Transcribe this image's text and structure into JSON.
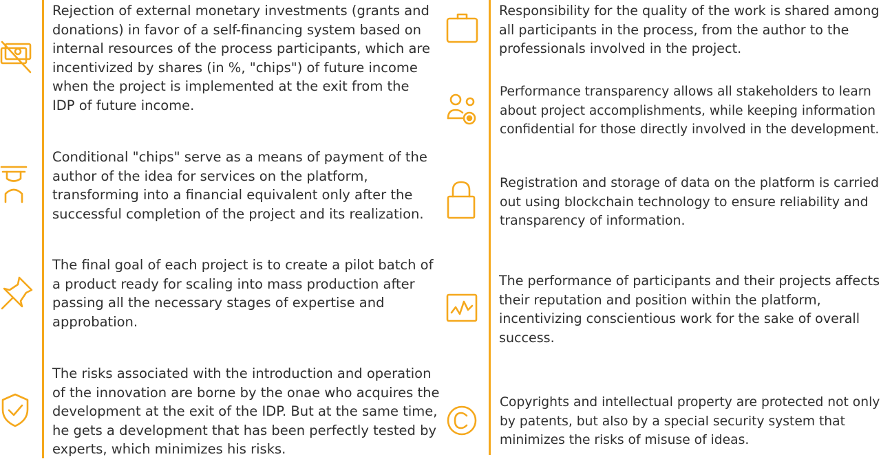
{
  "accent_color": "#f5a81c",
  "text_color": "#2f2f2f",
  "left_column": [
    {
      "icon": "no-money-icon",
      "lines": [
        "Rejection of external monetary investments (grants and",
        "donations) in favor of a self-financing system based on",
        "internal resources of the process participants, which are",
        "incentivized by shares (in %, \"chips\") of future income",
        "when the project is implemented at the exit from the",
        "IDP of future income."
      ]
    },
    {
      "icon": "exchange-icon",
      "lines": [
        "Conditional \"chips\" serve as a means of payment of the",
        "author of the idea for services on the  platform,",
        "transforming into a financial equivalent only after the",
        "successful completion of the project and its realization."
      ]
    },
    {
      "icon": "pin-icon",
      "lines": [
        "The final goal of each project is to create a pilot batch of",
        "a product ready for scaling into  mass production after",
        "passing all the necessary stages of expertise and",
        "approbation."
      ]
    },
    {
      "icon": "shield-check-icon",
      "lines": [
        "The risks associated with the introduction and operation",
        "of the innovation are borne by the onae who acquires the",
        "development at the exit of the IDP. But at the same time,",
        "he gets a development that has been perfectly tested by",
        "experts, which minimizes his risks."
      ]
    }
  ],
  "right_column": [
    {
      "icon": "briefcase-icon",
      "lines": [
        "Responsibility for the quality of the work is shared among",
        "all participants in the process,  from the author to the",
        "professionals involved in the project."
      ]
    },
    {
      "icon": "people-eye-icon",
      "lines": [
        "Performance transparency allows all stakeholders to learn",
        "about project accomplishments, while keeping information",
        "confidential for those directly involved in the development."
      ]
    },
    {
      "icon": "lock-icon",
      "lines": [
        "Registration and storage of data on the platform is carried",
        "out using blockchain technology  to ensure reliability and",
        "transparency of information."
      ]
    },
    {
      "icon": "chart-icon",
      "lines": [
        "The performance of participants and their projects affects",
        "their reputation and position within the platform,",
        "incentivizing conscientious work for the sake of overall",
        "success."
      ]
    },
    {
      "icon": "copyright-icon",
      "lines": [
        "Copyrights and intellectual property are protected not only",
        "by  patents, but also by a special security system that",
        "minimizes the risks of misuse of ideas."
      ]
    }
  ]
}
